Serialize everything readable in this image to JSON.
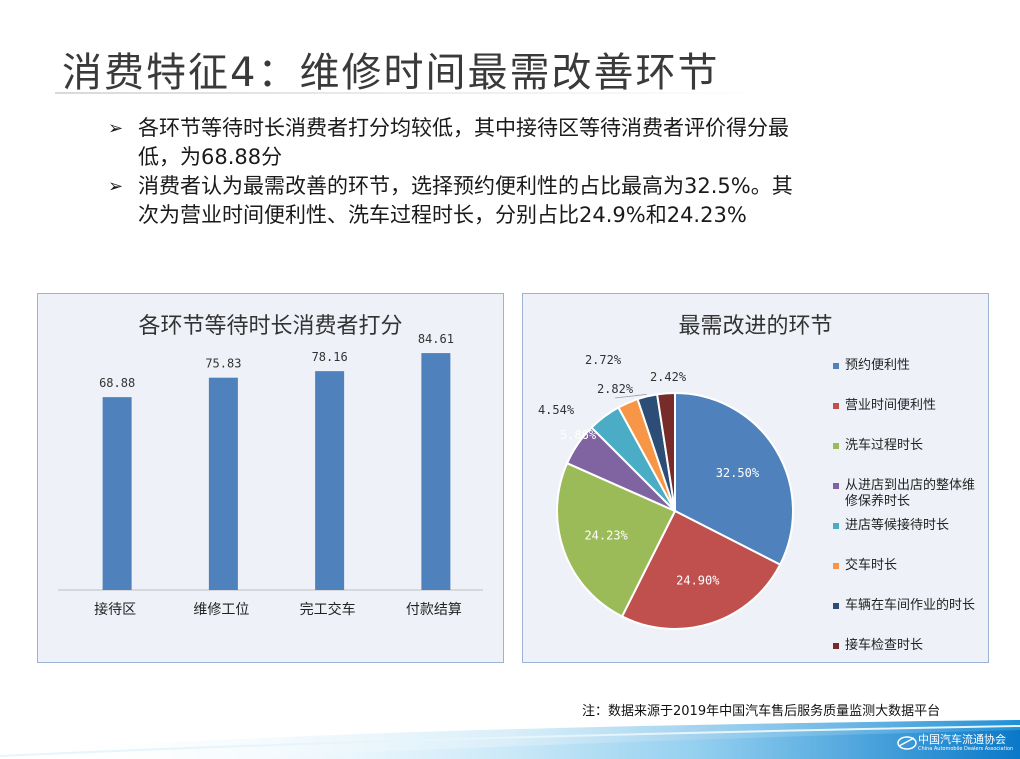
{
  "slide": {
    "title": "消费特征4：维修时间最需改善环节",
    "bullets": [
      {
        "lines": [
          "各环节等待时长消费者打分均较低，其中接待区等待消费者评价得分最",
          "低，为68.88分"
        ]
      },
      {
        "lines": [
          "消费者认为最需改善的环节，选择预约便利性的占比最高为32.5%。其",
          "次为营业时间便利性、洗车过程时长，分别占比24.9%和24.23%"
        ]
      }
    ],
    "footnote": "注：数据来源于2019年中国汽车售后服务质量监测大数据平台",
    "logo": {
      "name": "中国汽车流通协会",
      "sub": "China Automobile Dealers Association"
    }
  },
  "chart_data": [
    {
      "type": "bar",
      "title": "各环节等待时长消费者打分",
      "categories": [
        "接待区",
        "维修工位",
        "完工交车",
        "付款结算"
      ],
      "values": [
        68.88,
        75.83,
        78.16,
        84.61
      ],
      "value_labels": [
        "68.88",
        "75.83",
        "78.16",
        "84.61"
      ],
      "xlabel": "",
      "ylabel": "",
      "ylim": [
        0,
        100
      ],
      "grid": false,
      "color": "#4f81bd"
    },
    {
      "type": "pie",
      "title": "最需改进的环节",
      "labels": [
        "预约便利性",
        "营业时间便利性",
        "洗车过程时长",
        "从进店到出店的整体维修保养时长",
        "进店等候接待时长",
        "交车时长",
        "车辆在车间作业的时长",
        "接车检查时长"
      ],
      "legend_labels": [
        [
          "预约便利性"
        ],
        [
          "营业时间便利性"
        ],
        [
          "洗车过程时长"
        ],
        [
          "从进店到出店的整体维",
          "修保养时长"
        ],
        [
          "进店等候接待时长"
        ],
        [
          "交车时长"
        ],
        [
          "车辆在车间作业的时长"
        ],
        [
          "接车检查时长"
        ]
      ],
      "values": [
        32.5,
        24.9,
        24.23,
        5.86,
        4.54,
        2.82,
        2.72,
        2.42
      ],
      "value_labels": [
        "32.50%",
        "24.90%",
        "24.23%",
        "5.86%",
        "4.54%",
        "2.82%",
        "2.72%",
        "2.42%"
      ],
      "colors": [
        "#4f81bd",
        "#c0504d",
        "#9bbb59",
        "#8064a2",
        "#4bacc6",
        "#f79646",
        "#2c4d75",
        "#772c2a"
      ],
      "legend_position": "right"
    }
  ]
}
